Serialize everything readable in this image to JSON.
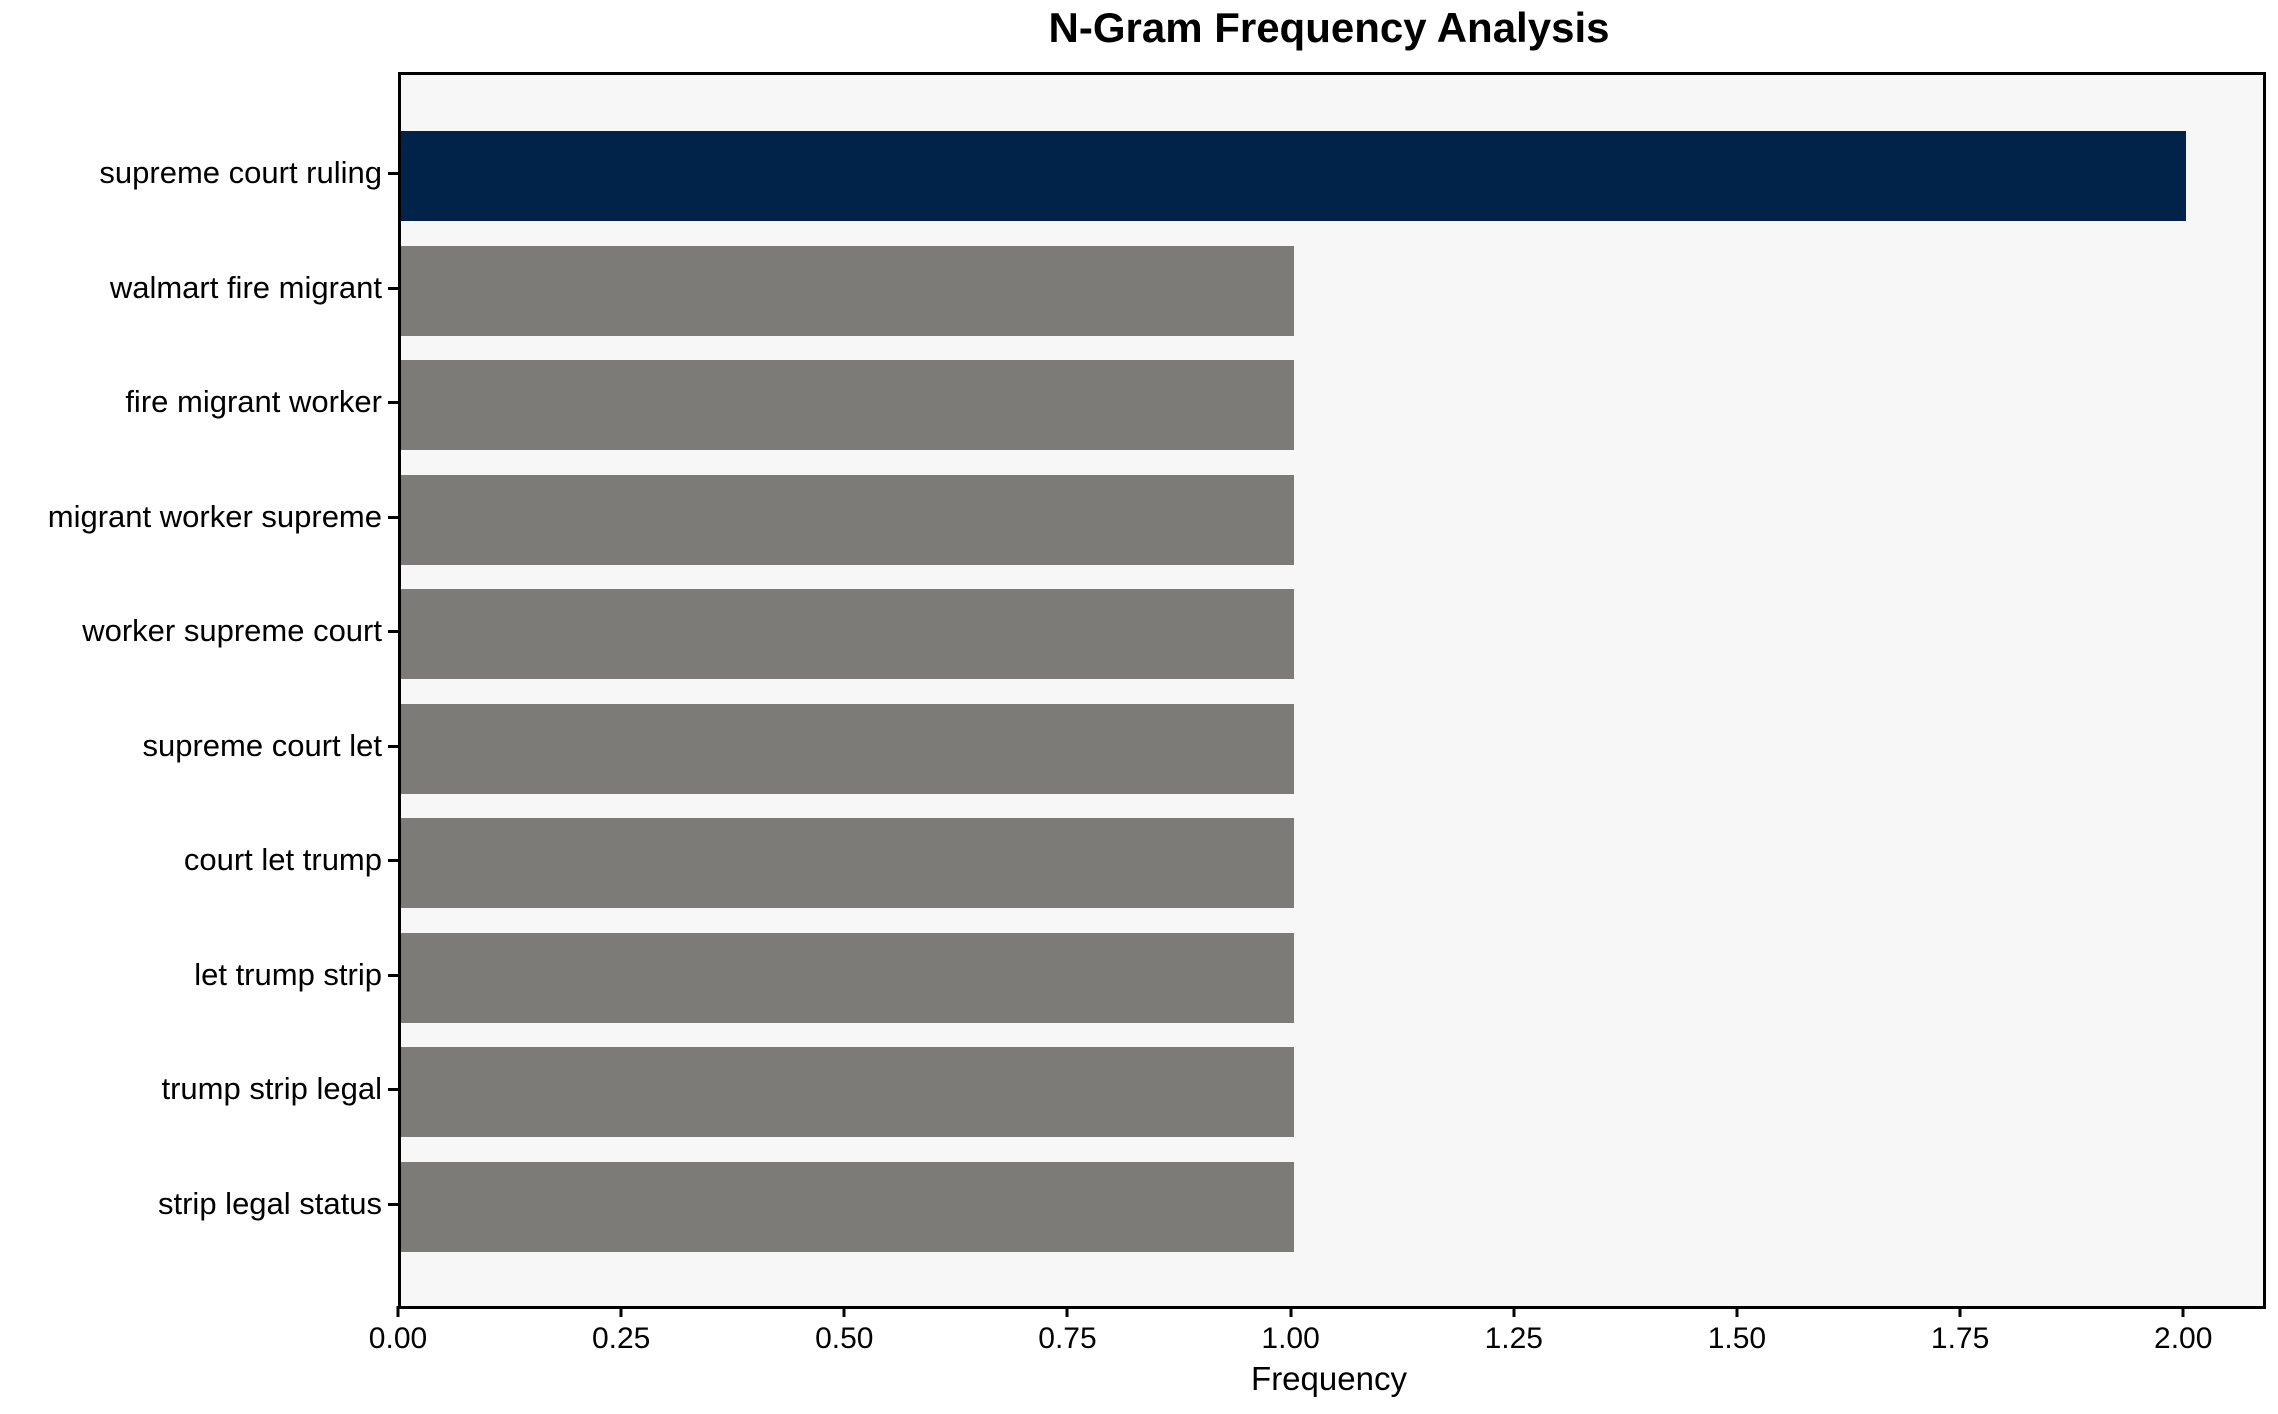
{
  "chart_data": {
    "type": "bar",
    "orientation": "horizontal",
    "title": "N-Gram Frequency Analysis",
    "xlabel": "Frequency",
    "ylabel": "",
    "categories": [
      "supreme court ruling",
      "walmart fire migrant",
      "fire migrant worker",
      "migrant worker supreme",
      "worker supreme court",
      "supreme court let",
      "court let trump",
      "let trump strip",
      "trump strip legal",
      "strip legal status"
    ],
    "values": [
      2,
      1,
      1,
      1,
      1,
      1,
      1,
      1,
      1,
      1
    ],
    "xlim": [
      0,
      2.086
    ],
    "xticks": [
      {
        "label": "0.00",
        "value": 0.0
      },
      {
        "label": "0.25",
        "value": 0.25
      },
      {
        "label": "0.50",
        "value": 0.5
      },
      {
        "label": "0.75",
        "value": 0.75
      },
      {
        "label": "1.00",
        "value": 1.0
      },
      {
        "label": "1.25",
        "value": 1.25
      },
      {
        "label": "1.50",
        "value": 1.5
      },
      {
        "label": "1.75",
        "value": 1.75
      },
      {
        "label": "2.00",
        "value": 2.0
      }
    ],
    "grid": false,
    "legend": "none",
    "highlighted_category": "supreme court ruling"
  },
  "colors": {
    "highlight_bar": "#012249",
    "default_bar": "#7c7b78",
    "plot_background": "#f7f7f7",
    "figure_background": "#ffffff",
    "spine": "#000000",
    "text": "#000000"
  }
}
